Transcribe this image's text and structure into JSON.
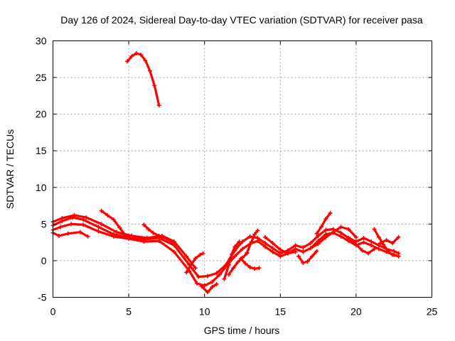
{
  "chart_data": {
    "type": "scatter",
    "title": "Day 126 of 2024, Sidereal Day-to-day VTEC variation (SDTVAR) for receiver pasa",
    "xlabel": "GPS time / hours",
    "ylabel": "SDTVAR / TECUs",
    "xlim": [
      0,
      25
    ],
    "ylim": [
      -5,
      30
    ],
    "xticks": [
      "0",
      "5",
      "10",
      "15",
      "20",
      "25"
    ],
    "yticks": [
      "-5",
      "0",
      "5",
      "10",
      "15",
      "20",
      "25",
      "30"
    ],
    "grid": true,
    "marker": "+",
    "color": "#ff0000",
    "series": [
      {
        "name": "s1",
        "x": [
          4.9,
          5.2,
          5.5,
          5.8,
          6.1,
          6.4,
          6.7,
          7.0
        ],
        "y": [
          27.2,
          27.9,
          28.3,
          28.1,
          27.3,
          25.9,
          23.9,
          21.2
        ]
      },
      {
        "name": "s2",
        "x": [
          0,
          0.6,
          1.3,
          2.0,
          3.0,
          4.0,
          5.0,
          6.0,
          7.0,
          8.0,
          9.0,
          9.6,
          10.2,
          10.8,
          11.4,
          12.0,
          12.5,
          13.0,
          13.5,
          14.0,
          14.5,
          15.0,
          15.5,
          16.0,
          16.5,
          17.0,
          17.5,
          18.0,
          18.5,
          19.0,
          19.5,
          20.0,
          20.5,
          21.0,
          21.5,
          22.0,
          22.5,
          22.8
        ],
        "y": [
          4.8,
          5.4,
          5.9,
          5.6,
          4.6,
          3.6,
          3.2,
          2.9,
          3.1,
          2.1,
          -0.6,
          -2.2,
          -2.1,
          -1.7,
          -0.6,
          1.4,
          2.6,
          3.3,
          3.1,
          2.4,
          1.7,
          1.0,
          1.4,
          2.1,
          1.8,
          2.4,
          3.4,
          4.2,
          4.3,
          3.8,
          3.1,
          2.6,
          3.1,
          2.6,
          2.1,
          1.6,
          1.3,
          1.0
        ]
      },
      {
        "name": "s3",
        "x": [
          0,
          0.5,
          1.2,
          2.0,
          3.0,
          4.0,
          5.0,
          6.0,
          7.0,
          8.0,
          9.0,
          9.5,
          10.0,
          10.5,
          11.0,
          11.5,
          12.0,
          12.5,
          13.0,
          13.5,
          14.0,
          14.5,
          15.0,
          15.5,
          16.0,
          16.5,
          17.0,
          17.5,
          18.0,
          18.5,
          19.0,
          19.5,
          20.0,
          20.5,
          21.0,
          21.5,
          22.0,
          22.5,
          22.8
        ],
        "y": [
          4.2,
          4.6,
          5.0,
          4.9,
          4.0,
          3.3,
          3.0,
          2.6,
          2.7,
          1.2,
          -1.4,
          -3.1,
          -3.4,
          -2.9,
          -1.9,
          -0.6,
          0.6,
          1.6,
          2.3,
          2.7,
          1.9,
          1.2,
          0.6,
          1.0,
          1.6,
          1.2,
          1.7,
          2.7,
          3.6,
          3.8,
          3.3,
          2.7,
          2.1,
          2.5,
          2.1,
          1.6,
          1.2,
          0.8,
          0.6
        ]
      },
      {
        "name": "s4",
        "x": [
          0,
          0.6,
          1.4,
          2.2,
          3.2,
          4.2,
          5.2,
          6.2,
          7.2,
          8.0,
          8.8,
          9.4
        ],
        "y": [
          5.3,
          5.8,
          6.2,
          5.9,
          5.0,
          3.9,
          3.4,
          3.1,
          3.4,
          2.6,
          0.6,
          -1.0
        ]
      },
      {
        "name": "s5",
        "x": [
          0,
          0.4,
          1.0,
          1.8,
          2.3
        ],
        "y": [
          3.8,
          3.4,
          3.7,
          3.9,
          3.3
        ]
      },
      {
        "name": "s6",
        "x": [
          3.2,
          3.6,
          4.0,
          4.4,
          4.8
        ],
        "y": [
          6.8,
          6.2,
          5.6,
          4.5,
          3.4
        ]
      },
      {
        "name": "s7",
        "x": [
          6.0,
          6.3,
          6.6,
          7.0,
          7.5,
          8.0
        ],
        "y": [
          4.9,
          4.3,
          3.8,
          3.4,
          3.0,
          2.4
        ]
      },
      {
        "name": "s8",
        "x": [
          8.8,
          9.1,
          9.4,
          9.7,
          9.9
        ],
        "y": [
          -1.6,
          -0.6,
          0.3,
          0.8,
          1.0
        ]
      },
      {
        "name": "s9",
        "x": [
          9.8,
          10.2,
          10.5,
          10.8
        ],
        "y": [
          -3.5,
          -4.3,
          -3.6,
          -3.2
        ]
      },
      {
        "name": "s10",
        "x": [
          11.3,
          11.6,
          11.8,
          12.0,
          12.3
        ],
        "y": [
          -2.5,
          -0.6,
          0.9,
          1.9,
          2.6
        ]
      },
      {
        "name": "s11",
        "x": [
          11.6,
          11.9,
          12.2,
          12.5,
          12.8
        ],
        "y": [
          -1.9,
          -1.0,
          -0.2,
          0.4,
          1.0
        ]
      },
      {
        "name": "s12",
        "x": [
          12.4,
          12.7,
          13.0,
          13.3,
          13.6
        ],
        "y": [
          0.3,
          -0.4,
          -0.9,
          -1.1,
          -1.0
        ]
      },
      {
        "name": "s13",
        "x": [
          12.8,
          13.1,
          13.3,
          13.5
        ],
        "y": [
          1.1,
          2.6,
          3.6,
          4.1
        ]
      },
      {
        "name": "s14",
        "x": [
          14.0,
          14.5,
          15.0,
          15.5,
          16.0
        ],
        "y": [
          3.2,
          2.4,
          1.5,
          1.0,
          1.2
        ]
      },
      {
        "name": "s15",
        "x": [
          16.2,
          16.5,
          16.8,
          17.1,
          17.4
        ],
        "y": [
          0.6,
          -0.3,
          -0.1,
          0.6,
          1.3
        ]
      },
      {
        "name": "s16",
        "x": [
          17.4,
          17.7,
          18.0,
          18.3
        ],
        "y": [
          3.7,
          4.6,
          5.7,
          6.5
        ]
      },
      {
        "name": "s17",
        "x": [
          17.0,
          17.5,
          18.0,
          18.5,
          19.0,
          19.5,
          20.0
        ],
        "y": [
          1.7,
          2.3,
          3.2,
          3.9,
          4.6,
          4.3,
          3.2
        ]
      },
      {
        "name": "s18",
        "x": [
          19.6,
          20.0,
          20.4,
          20.8,
          21.2
        ],
        "y": [
          3.0,
          2.2,
          1.4,
          1.0,
          1.6
        ]
      },
      {
        "name": "s19",
        "x": [
          21.2,
          21.5,
          21.8,
          22.1,
          22.4,
          22.8
        ],
        "y": [
          4.3,
          3.2,
          2.2,
          1.3,
          0.8,
          0.6
        ]
      },
      {
        "name": "s20",
        "x": [
          21.6,
          22.0,
          22.4,
          22.8
        ],
        "y": [
          2.4,
          2.8,
          2.4,
          3.2
        ]
      }
    ]
  }
}
